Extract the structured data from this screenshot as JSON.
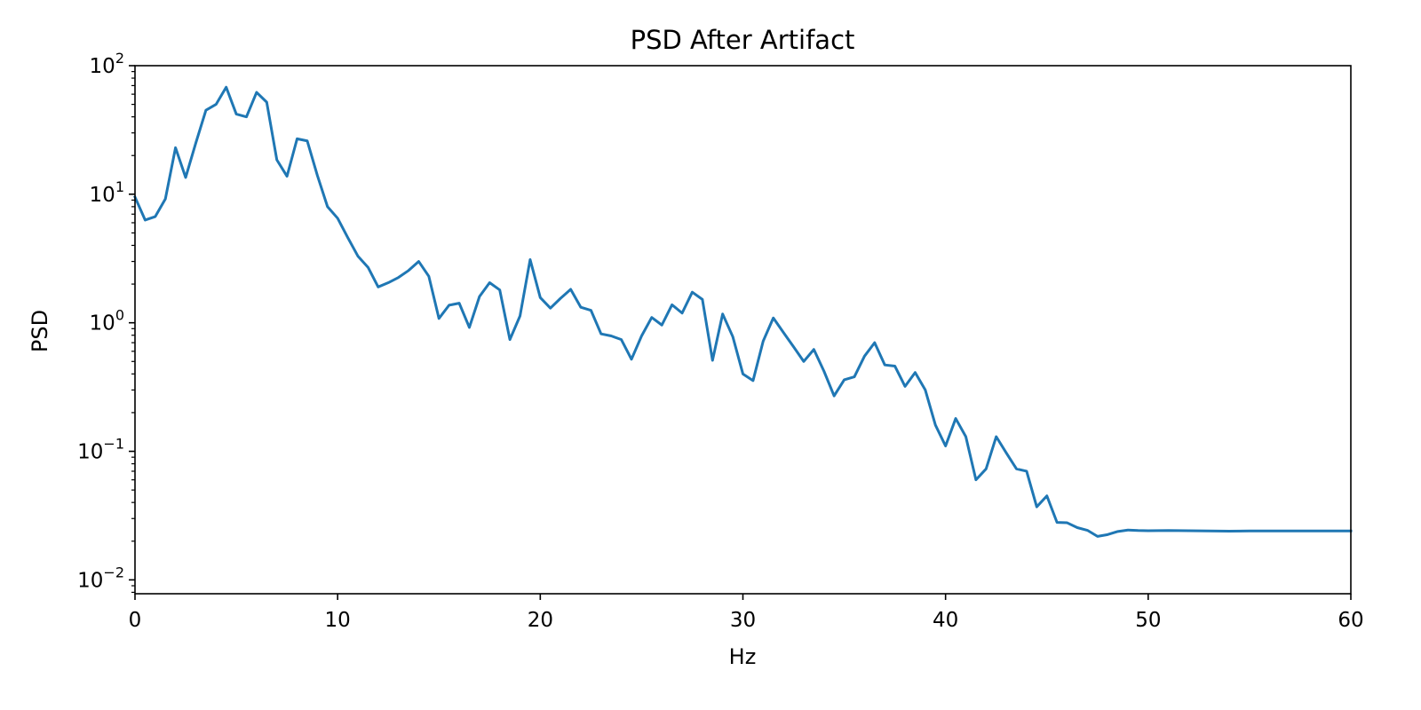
{
  "chart_data": {
    "type": "line",
    "title": "PSD After Artifact",
    "xlabel": "Hz",
    "ylabel": "PSD",
    "xlim": [
      0,
      60
    ],
    "ylim": [
      0.0078,
      100
    ],
    "yscale": "log",
    "grid": false,
    "xticks": [
      "0",
      "10",
      "20",
      "30",
      "40",
      "50",
      "60"
    ],
    "yticks": [
      {
        "base": "10",
        "exp": "−2",
        "value": 0.01
      },
      {
        "base": "10",
        "exp": "−1",
        "value": 0.1
      },
      {
        "base": "10",
        "exp": "0",
        "value": 1
      },
      {
        "base": "10",
        "exp": "1",
        "value": 10
      },
      {
        "base": "10",
        "exp": "2",
        "value": 100
      }
    ],
    "series": [
      {
        "color": "#1f77b4",
        "x": [
          0,
          0.5,
          1,
          1.5,
          2,
          2.5,
          3,
          3.5,
          4,
          4.5,
          5,
          5.5,
          6,
          6.5,
          7,
          7.5,
          8,
          8.5,
          9,
          9.5,
          10,
          10.5,
          11,
          11.5,
          12,
          12.5,
          13,
          13.5,
          14,
          14.5,
          15,
          15.5,
          16,
          16.5,
          17,
          17.5,
          18,
          18.5,
          19,
          19.5,
          20,
          20.5,
          21,
          21.5,
          22,
          22.5,
          23,
          23.5,
          24,
          24.5,
          25,
          25.5,
          26,
          26.5,
          27,
          27.5,
          28,
          28.5,
          29,
          29.5,
          30,
          30.5,
          31,
          31.5,
          32,
          32.5,
          33,
          33.5,
          34,
          34.5,
          35,
          35.5,
          36,
          36.5,
          37,
          37.5,
          38,
          38.5,
          39,
          39.5,
          40,
          40.5,
          41,
          41.5,
          42,
          42.5,
          43,
          43.5,
          44,
          44.5,
          45,
          45.5,
          46,
          46.5,
          47,
          47.5,
          48,
          48.5,
          49,
          49.5,
          50,
          51,
          52,
          53,
          54,
          55,
          56,
          57,
          58,
          59,
          60
        ],
        "values": [
          9.5,
          6.3,
          6.7,
          9.2,
          23,
          13.5,
          25,
          45,
          50,
          68,
          42,
          40,
          62,
          52,
          18.5,
          13.8,
          27,
          26,
          14,
          8.0,
          6.5,
          4.6,
          3.3,
          2.7,
          1.9,
          2.05,
          2.25,
          2.55,
          3.0,
          2.3,
          1.08,
          1.37,
          1.42,
          0.92,
          1.6,
          2.05,
          1.8,
          0.74,
          1.13,
          3.1,
          1.57,
          1.3,
          1.55,
          1.82,
          1.32,
          1.25,
          0.82,
          0.79,
          0.74,
          0.52,
          0.79,
          1.1,
          0.96,
          1.38,
          1.19,
          1.73,
          1.52,
          0.51,
          1.17,
          0.78,
          0.4,
          0.355,
          0.72,
          1.09,
          0.84,
          0.65,
          0.5,
          0.62,
          0.42,
          0.27,
          0.36,
          0.38,
          0.55,
          0.7,
          0.47,
          0.46,
          0.32,
          0.41,
          0.3,
          0.16,
          0.11,
          0.18,
          0.13,
          0.06,
          0.073,
          0.13,
          0.097,
          0.073,
          0.07,
          0.037,
          0.045,
          0.028,
          0.0278,
          0.0255,
          0.0243,
          0.0218,
          0.0225,
          0.0238,
          0.0244,
          0.0242,
          0.0241,
          0.0242,
          0.0241,
          0.024,
          0.0239,
          0.024,
          0.024,
          0.024,
          0.024,
          0.024,
          0.024
        ]
      }
    ]
  }
}
